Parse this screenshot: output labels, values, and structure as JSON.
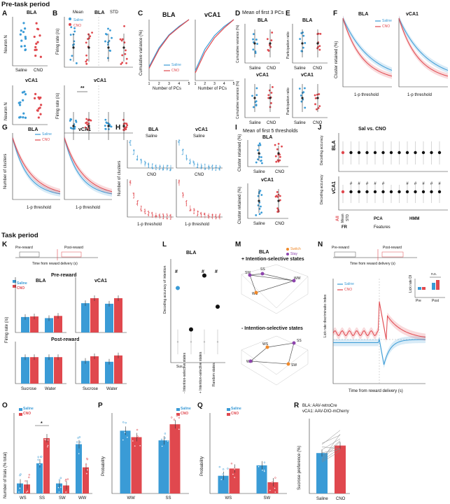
{
  "sections": {
    "pre": "Pre-task period",
    "task": "Task period"
  },
  "panels": [
    "A",
    "B",
    "C",
    "D",
    "E",
    "F",
    "G",
    "H",
    "I",
    "J",
    "K",
    "L",
    "M",
    "N",
    "O",
    "P",
    "Q",
    "R"
  ],
  "colors": {
    "saline": "#3a9bd6",
    "cno": "#e0484e",
    "grey": "#999999"
  },
  "groups": {
    "saline": "Saline",
    "cno": "CNO"
  },
  "regions": {
    "bla": "BLA",
    "vca1": "vCA1"
  },
  "panel_a": {
    "ylabel": "Neuron N"
  },
  "panel_b": {
    "mean": "Mean",
    "std": "STD",
    "ylabel": "Firing rate (/s)",
    "sig": "**"
  },
  "panel_c": {
    "ylabel": "Cumulative variance (%)",
    "xlabel": "Number of PCs"
  },
  "panel_d": {
    "title": "Mean of first 3 PCs",
    "ylabel": "Cumulative variance (%)"
  },
  "panel_e": {
    "ylabel": "Participation ratio"
  },
  "panel_f": {
    "ylabel": "Cluster retained (%)",
    "xlabel": "1-p threshold"
  },
  "panel_g": {
    "ylabel": "Number of clusters",
    "xlabel": "1-p threshold"
  },
  "panel_h": {
    "ylabel": "Number of clusters",
    "xlabel": "1-p threshold"
  },
  "panel_i": {
    "title": "Mean of first 5 thresholds",
    "ylabel": "Cluster retained (%)"
  },
  "panel_j": {
    "title": "Sal vs. CNO",
    "ylabel": "Decoding accuracy",
    "xlabel": "Features",
    "all": "All",
    "mean": "Mean",
    "std": "STD",
    "fr": "FR",
    "pca": "PCA",
    "hmm": "HMM",
    "hash": "#"
  },
  "panel_k": {
    "pre": "Pre-reward",
    "post": "Post-reward",
    "axis": "Time from reward delivery (s)",
    "ylabel": "Firing rate (/s)",
    "sucrose": "Sucrose",
    "water": "Water"
  },
  "panel_l": {
    "title": "BLA",
    "ylabel": "Decoding accuracy of intention",
    "cats": [
      "Sus.",
      "- Intention-selective states",
      "+ Intention-selective states",
      "Random states"
    ],
    "hash": "#"
  },
  "panel_m": {
    "title": "BLA",
    "plus": "+ Intention-selective states",
    "minus": "- Intention-selective states",
    "switch": "Switch",
    "stay": "Stay",
    "states": [
      "SW",
      "SS",
      "WS",
      "WW"
    ]
  },
  "panel_n": {
    "pre": "Pre-reward",
    "post": "Post-reward",
    "axis": "Time from reward delivery (s)",
    "ylabel": "Lick rate discriminatio index",
    "xlabel": "Time from reward delivery (s)",
    "inset_y": "Lick rate DI",
    "inset_pre": "Pre",
    "inset_post": "Post",
    "ns": "n.s."
  },
  "panel_o": {
    "ylabel": "Number of trials (% total)",
    "cats": [
      "WS",
      "SS",
      "SW",
      "WW"
    ],
    "sig": "*"
  },
  "panel_p": {
    "ylabel": "Probability",
    "cats": [
      "WW",
      "SS"
    ]
  },
  "panel_q": {
    "ylabel": "Probability",
    "cats": [
      "WS",
      "SW"
    ]
  },
  "panel_r": {
    "line1": "BLA: AAV-retroCre",
    "line2": "vCA1: AAV-DIO-mCherry",
    "ylabel": "Sucrose preference (%)"
  },
  "chart_data": [
    {
      "panel": "C",
      "type": "line",
      "title": "BLA",
      "xlabel": "Number of PCs",
      "ylabel": "Cumulative variance (%)",
      "x": [
        1,
        2,
        3,
        4,
        5
      ],
      "ylim": [
        20,
        100
      ],
      "series": [
        {
          "name": "Saline",
          "values": [
            38,
            63,
            80,
            91,
            100
          ]
        },
        {
          "name": "CNO",
          "values": [
            36,
            61,
            79,
            90,
            100
          ]
        }
      ]
    },
    {
      "panel": "C",
      "type": "line",
      "title": "vCA1",
      "xlabel": "Number of PCs",
      "x": [
        1,
        2,
        3,
        4,
        5
      ],
      "ylim": [
        20,
        100
      ],
      "series": [
        {
          "name": "Saline",
          "values": [
            33,
            61,
            79,
            91,
            100
          ]
        },
        {
          "name": "CNO",
          "values": [
            30,
            57,
            76,
            89,
            100
          ]
        }
      ]
    },
    {
      "panel": "K",
      "type": "bar",
      "title": "BLA",
      "subtitle": "Pre-reward",
      "categories": [
        "Sucrose",
        "Water"
      ],
      "ylim": [
        0,
        10
      ],
      "series": [
        {
          "name": "Saline",
          "values": [
            2.8,
            2.6
          ]
        },
        {
          "name": "CNO",
          "values": [
            2.9,
            3.0
          ]
        }
      ]
    },
    {
      "panel": "K",
      "type": "bar",
      "title": "vCA1",
      "subtitle": "Pre-reward",
      "categories": [
        "Sucrose",
        "Water"
      ],
      "ylim": [
        0,
        10
      ],
      "series": [
        {
          "name": "Saline",
          "values": [
            5.3,
            5.2
          ]
        },
        {
          "name": "CNO",
          "values": [
            6.2,
            6.2
          ]
        }
      ]
    },
    {
      "panel": "K",
      "type": "bar",
      "title": "BLA",
      "subtitle": "Post-reward",
      "categories": [
        "Sucrose",
        "Water"
      ],
      "ylim": [
        0,
        10
      ],
      "series": [
        {
          "name": "Saline",
          "values": [
            6.3,
            6.3
          ]
        },
        {
          "name": "CNO",
          "values": [
            6.3,
            6.3
          ]
        }
      ]
    },
    {
      "panel": "K",
      "type": "bar",
      "title": "vCA1",
      "subtitle": "Post-reward",
      "categories": [
        "Sucrose",
        "Water"
      ],
      "ylim": [
        0,
        10
      ],
      "series": [
        {
          "name": "Saline",
          "values": [
            5.4,
            5.2
          ]
        },
        {
          "name": "CNO",
          "values": [
            6.5,
            6.7
          ]
        }
      ]
    },
    {
      "panel": "L",
      "type": "scatter",
      "title": "BLA",
      "ylabel": "Decoding accuracy of intention",
      "categories": [
        "Sus.",
        "- Intention-selective states",
        "+ Intention-selective states",
        "Random states"
      ],
      "values": [
        0.76,
        0.56,
        0.82,
        0.67
      ],
      "chance": [
        0.5,
        0.5,
        0.5,
        0.5
      ],
      "ylim": [
        0.4,
        0.9
      ]
    },
    {
      "panel": "O",
      "type": "bar",
      "ylabel": "Number of trials (% total)",
      "categories": [
        "WS",
        "SS",
        "SW",
        "WW"
      ],
      "ylim": [
        0,
        80
      ],
      "series": [
        {
          "name": "Saline",
          "values": [
            10,
            30,
            10,
            49
          ]
        },
        {
          "name": "CNO",
          "values": [
            9,
            55,
            8,
            26
          ]
        }
      ]
    },
    {
      "panel": "P",
      "type": "bar",
      "ylabel": "Probability",
      "categories": [
        "WW",
        "SS"
      ],
      "ylim": [
        0,
        1
      ],
      "series": [
        {
          "name": "Saline",
          "values": [
            0.78,
            0.66
          ]
        },
        {
          "name": "CNO",
          "values": [
            0.7,
            0.86
          ]
        }
      ]
    },
    {
      "panel": "Q",
      "type": "bar",
      "ylabel": "Probability",
      "categories": [
        "WS",
        "SW"
      ],
      "ylim": [
        0,
        1
      ],
      "series": [
        {
          "name": "Saline",
          "values": [
            0.22,
            0.35
          ]
        },
        {
          "name": "CNO",
          "values": [
            0.31,
            0.14
          ]
        }
      ]
    },
    {
      "panel": "R",
      "type": "bar",
      "ylabel": "Sucrose preference (%)",
      "categories": [
        "Saline",
        "CNO"
      ],
      "ylim": [
        0,
        100
      ],
      "values": [
        54,
        64
      ]
    }
  ]
}
